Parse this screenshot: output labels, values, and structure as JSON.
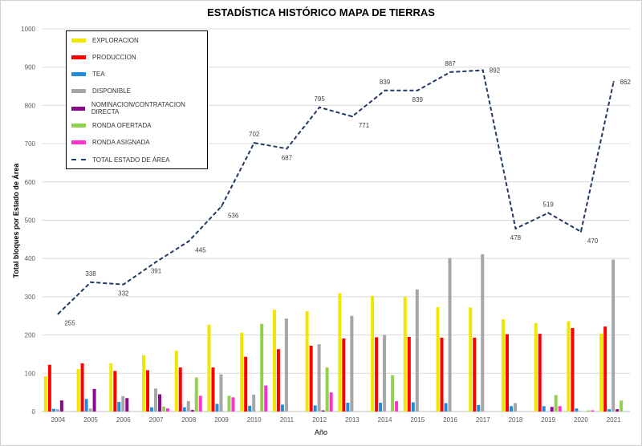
{
  "chart_data": {
    "type": "bar",
    "title": "ESTADÍSTICA HISTÓRICO MAPA DE TIERRAS",
    "xlabel": "Año",
    "ylabel": "Total bloques por Estado de Área",
    "ylim": [
      0,
      1000
    ],
    "yticks": [
      "0",
      "100",
      "200",
      "300",
      "400",
      "500",
      "600",
      "700",
      "800",
      "900",
      "1000"
    ],
    "grid": true,
    "legend_position": "top-left",
    "categories": [
      "2004",
      "2005",
      "2006",
      "2007",
      "2008",
      "2009",
      "2010",
      "2011",
      "2012",
      "2013",
      "2014",
      "2015",
      "2016",
      "2017",
      "2018",
      "2019",
      "2020",
      "2021"
    ],
    "series": [
      {
        "name": "EXPLORACION",
        "type": "bar",
        "color": "#f2e600",
        "values": [
          92,
          111,
          126,
          147,
          159,
          227,
          206,
          266,
          262,
          309,
          302,
          300,
          273,
          272,
          241,
          231,
          236,
          204
        ]
      },
      {
        "name": "PRODUCCION",
        "type": "bar",
        "color": "#ff0000",
        "values": [
          122,
          126,
          106,
          108,
          115,
          115,
          143,
          163,
          172,
          191,
          194,
          195,
          193,
          193,
          202,
          203,
          218,
          222
        ]
      },
      {
        "name": "TEA",
        "type": "bar",
        "color": "#1f8ddc",
        "values": [
          7,
          33,
          25,
          11,
          11,
          20,
          15,
          18,
          16,
          23,
          23,
          24,
          22,
          17,
          14,
          14,
          8,
          6
        ]
      },
      {
        "name": "DISPONIBLE",
        "type": "bar",
        "color": "#a6a6a6",
        "values": [
          6,
          8,
          40,
          60,
          27,
          97,
          44,
          243,
          176,
          250,
          200,
          319,
          401,
          411,
          22,
          1,
          1,
          397
        ]
      },
      {
        "name": "NOMINACION/CONTRATACION DIRECTA",
        "type": "bar",
        "color": "#8b0a8b",
        "values": [
          29,
          59,
          35,
          45,
          4,
          0,
          0,
          0,
          3,
          0,
          0,
          0,
          0,
          0,
          0,
          12,
          0,
          6
        ]
      },
      {
        "name": "RONDA OFERTADA",
        "type": "bar",
        "color": "#92d050",
        "values": [
          0,
          0,
          0,
          13,
          89,
          41,
          229,
          0,
          115,
          0,
          95,
          0,
          0,
          0,
          0,
          43,
          3,
          29
        ]
      },
      {
        "name": "RONDA ASIGNADA",
        "type": "bar",
        "color": "#ff33cc",
        "values": [
          0,
          0,
          0,
          8,
          41,
          37,
          68,
          0,
          50,
          0,
          27,
          0,
          0,
          0,
          0,
          14,
          3,
          0
        ]
      },
      {
        "name": "TOTAL ESTADO DE ÁREA",
        "type": "line",
        "style": "dashed",
        "color": "#1f3864",
        "values": [
          255,
          338,
          332,
          391,
          445,
          536,
          702,
          687,
          795,
          771,
          839,
          839,
          887,
          892,
          478,
          519,
          470,
          862
        ],
        "labels": [
          "255",
          "338",
          "332",
          "391",
          "445",
          "536",
          "702",
          "687",
          "795",
          "771",
          "839",
          "839",
          "887",
          "892",
          "478",
          "519",
          "470",
          "862"
        ]
      }
    ]
  }
}
